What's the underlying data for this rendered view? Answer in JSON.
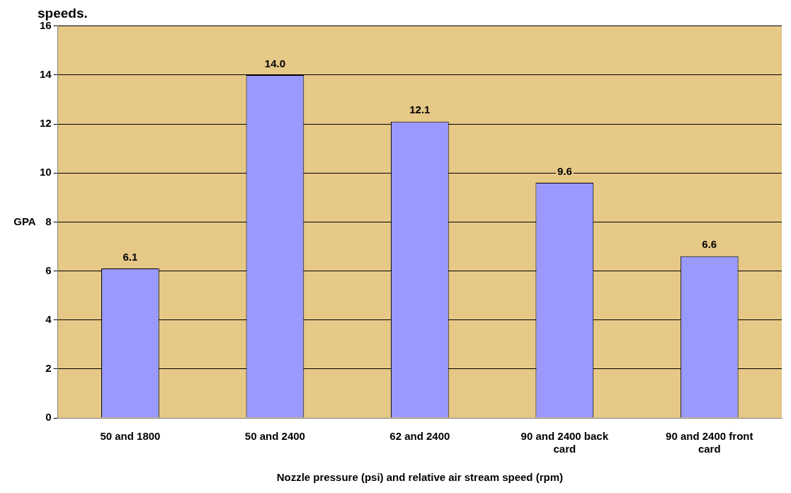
{
  "chart_data": {
    "type": "bar",
    "title": "speeds.",
    "xlabel": "Nozzle pressure (psi) and relative air stream speed (rpm)",
    "ylabel": "GPA",
    "categories": [
      "50 and 1800",
      "50 and 2400",
      "62 and 2400",
      "90 and 2400 back card",
      "90 and 2400 front card"
    ],
    "values": [
      6.1,
      14,
      12.1,
      9.6,
      6.6
    ],
    "value_labels": [
      "6.1",
      "14.0",
      "12.1",
      "9.6",
      "6.6"
    ],
    "color": "#9999ff",
    "ylim": [
      0,
      16
    ],
    "yticks": [
      0,
      2,
      4,
      6,
      8,
      10,
      12,
      14,
      16
    ],
    "grid": "y",
    "legend": false
  }
}
